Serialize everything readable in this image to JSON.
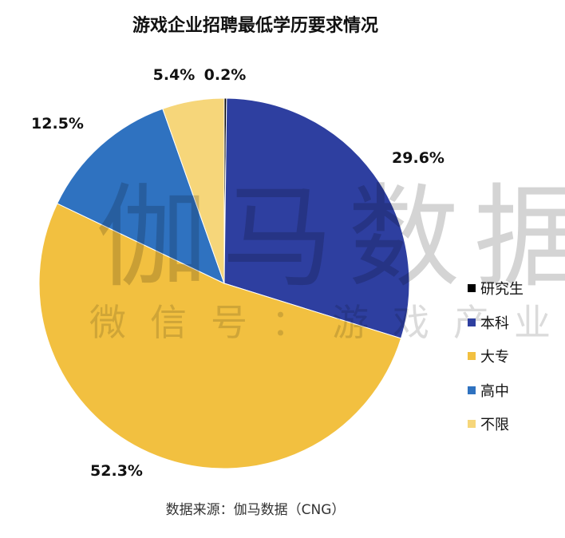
{
  "title": "游戏企业招聘最低学历要求情况",
  "watermark": {
    "main": "伽马数据",
    "sub": "微信号：游戏产业报告"
  },
  "source": "数据来源：伽马数据（CNG）",
  "chart_data": {
    "type": "pie",
    "title": "游戏企业招聘最低学历要求情况",
    "start_angle_deg": 0,
    "direction": "clockwise",
    "legend_position": "right",
    "slices": [
      {
        "name": "研究生",
        "value": 0.2,
        "label": "0.2%",
        "color": "#000000"
      },
      {
        "name": "本科",
        "value": 29.6,
        "label": "29.6%",
        "color": "#2E3FA0"
      },
      {
        "name": "大专",
        "value": 52.3,
        "label": "52.3%",
        "color": "#F2C040"
      },
      {
        "name": "高中",
        "value": 12.5,
        "label": "12.5%",
        "color": "#2F72C0"
      },
      {
        "name": "不限",
        "value": 5.4,
        "label": "5.4%",
        "color": "#F6D67A"
      }
    ]
  }
}
